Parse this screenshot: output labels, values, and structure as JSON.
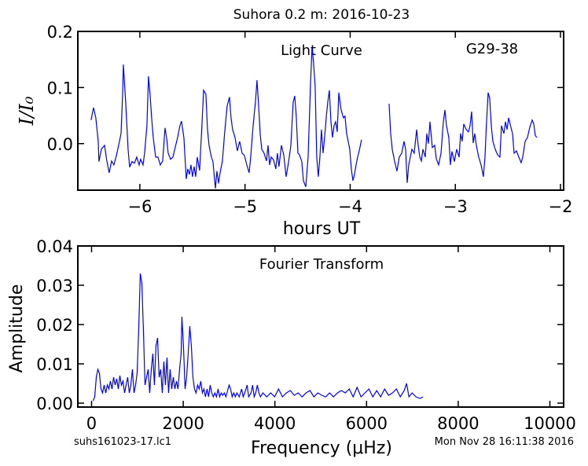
{
  "chart_data": [
    {
      "type": "line",
      "title": "Suhora 0.2 m:  2016-10-23",
      "annotations": [
        "Light Curve",
        "G29-38"
      ],
      "x_label": "hours UT",
      "y_label": "I/I₀",
      "color": "#0000ff",
      "xlim": [
        -6.59,
        -1.97
      ],
      "ylim": [
        -0.083,
        0.2
      ],
      "xticks": [
        {
          "value": -6,
          "label": "−6"
        },
        {
          "value": -5,
          "label": "−5"
        },
        {
          "value": -4,
          "label": "−4"
        },
        {
          "value": -3,
          "label": "−3"
        },
        {
          "value": -2,
          "label": "−2"
        }
      ],
      "yticks": [
        {
          "value": 0,
          "label": "0.0"
        },
        0.1,
        0.2
      ],
      "x": [
        -6.464,
        -6.441,
        -6.419,
        -6.396,
        -6.389,
        -6.366,
        -6.336,
        -6.314,
        -6.292,
        -6.269,
        -6.247,
        -6.224,
        -6.202,
        -6.179,
        -6.164,
        -6.157,
        -6.135,
        -6.112,
        -6.097,
        -6.075,
        -6.052,
        -6.03,
        -6.007,
        -5.993,
        -5.97,
        -5.955,
        -5.933,
        -5.918,
        -5.903,
        -5.888,
        -5.873,
        -5.85,
        -5.828,
        -5.806,
        -5.783,
        -5.761,
        -5.746,
        -5.731,
        -5.708,
        -5.686,
        -5.664,
        -5.641,
        -5.619,
        -5.604,
        -5.581,
        -5.559,
        -5.544,
        -5.529,
        -5.514,
        -5.499,
        -5.484,
        -5.469,
        -5.454,
        -5.432,
        -5.409,
        -5.394,
        -5.372,
        -5.357,
        -5.342,
        -5.32,
        -5.305,
        -5.282,
        -5.267,
        -5.252,
        -5.237,
        -5.215,
        -5.193,
        -5.17,
        -5.148,
        -5.133,
        -5.118,
        -5.095,
        -5.073,
        -5.051,
        -5.028,
        -5.006,
        -4.983,
        -4.961,
        -4.946,
        -4.923,
        -4.901,
        -4.886,
        -4.871,
        -4.856,
        -4.841,
        -4.819,
        -4.796,
        -4.781,
        -4.766,
        -4.751,
        -4.729,
        -4.707,
        -4.692,
        -4.677,
        -4.654,
        -4.631,
        -4.609,
        -4.587,
        -4.564,
        -4.542,
        -4.527,
        -4.512,
        -4.497,
        -4.482,
        -4.46,
        -4.445,
        -4.422,
        -4.4,
        -4.378,
        -4.363,
        -4.348,
        -4.333,
        -4.318,
        -4.303,
        -4.288,
        -4.273,
        -4.258,
        -4.243,
        -4.228,
        -4.213,
        -4.198,
        -4.183,
        -4.168,
        -4.153,
        -4.138,
        -4.123,
        -4.108,
        -4.086,
        -4.064,
        -4.049,
        -4.034,
        -4.019,
        -4.004,
        -3.989,
        -3.974,
        -3.959,
        -3.944,
        -3.929,
        -3.914,
        -3.892,
        -3.78,
        -3.63,
        -3.615,
        -3.6,
        -3.578,
        -3.555,
        -3.533,
        -3.51,
        -3.488,
        -3.473,
        -3.458,
        -3.443,
        -3.428,
        -3.413,
        -3.391,
        -3.368,
        -3.353,
        -3.338,
        -3.323,
        -3.308,
        -3.286,
        -3.271,
        -3.256,
        -3.241,
        -3.219,
        -3.196,
        -3.181,
        -3.159,
        -3.136,
        -3.114,
        -3.099,
        -3.084,
        -3.062,
        -3.047,
        -3.032,
        -3.009,
        -2.987,
        -2.964,
        -2.95,
        -2.935,
        -2.92,
        -2.897,
        -2.875,
        -2.86,
        -2.845,
        -2.83,
        -2.815,
        -2.8,
        -2.778,
        -2.755,
        -2.733,
        -2.718,
        -2.703,
        -2.688,
        -2.673,
        -2.658,
        -2.643,
        -2.621,
        -2.598,
        -2.576,
        -2.561,
        -2.538,
        -2.523,
        -2.508,
        -2.493,
        -2.471,
        -2.456,
        -2.441,
        -2.419,
        -2.396,
        -2.374,
        -2.359,
        -2.336,
        -2.314,
        -2.292,
        -2.269,
        -2.254,
        -2.239,
        -2.224
      ],
      "values": [
        0.042,
        0.064,
        0.046,
        0.004,
        -0.032,
        -0.01,
        -0.003,
        -0.031,
        -0.052,
        -0.031,
        -0.038,
        -0.022,
        -0.003,
        0.018,
        0.088,
        0.141,
        0.074,
        -0.01,
        -0.042,
        -0.032,
        -0.035,
        -0.024,
        -0.038,
        -0.028,
        -0.038,
        -0.017,
        0.032,
        0.12,
        0.088,
        0.046,
        0.011,
        -0.024,
        -0.024,
        -0.038,
        -0.031,
        0.028,
        0.011,
        -0.017,
        -0.028,
        -0.024,
        -0.007,
        0.011,
        0.032,
        0.04,
        0.01,
        -0.063,
        -0.045,
        -0.055,
        -0.038,
        -0.059,
        -0.041,
        -0.059,
        -0.024,
        -0.048,
        0.036,
        0.095,
        0.088,
        0.025,
        -0.003,
        -0.024,
        -0.032,
        -0.08,
        -0.049,
        -0.071,
        -0.052,
        -0.031,
        0.021,
        0.067,
        0.083,
        0.046,
        0.025,
        0.011,
        -0.013,
        0.004,
        -0.017,
        -0.021,
        -0.038,
        -0.052,
        -0.024,
        0.032,
        0.074,
        0.113,
        0.069,
        0.018,
        -0.01,
        -0.017,
        -0.031,
        -0.003,
        -0.038,
        -0.024,
        -0.029,
        -0.045,
        -0.017,
        -0.041,
        -0.003,
        -0.021,
        -0.059,
        -0.034,
        -0.003,
        0.074,
        0.085,
        0.046,
        -0.017,
        -0.02,
        -0.032,
        -0.066,
        -0.077,
        -0.024,
        0.102,
        0.172,
        0.144,
        0.102,
        -0.024,
        -0.059,
        -0.024,
        0.025,
        -0.017,
        0.011,
        0.046,
        0.074,
        0.095,
        0.039,
        0.011,
        0.032,
        0.039,
        0.021,
        0.091,
        0.06,
        0.046,
        0.049,
        0.018,
        0.004,
        -0.01,
        -0.045,
        -0.066,
        -0.055,
        -0.038,
        -0.024,
        -0.013,
        0.007,
        null,
        0.071,
        0.018,
        -0.01,
        -0.031,
        -0.049,
        -0.024,
        -0.017,
        0.004,
        -0.01,
        -0.07,
        -0.038,
        -0.024,
        -0.01,
        -0.017,
        0.025,
        -0.003,
        -0.024,
        -0.031,
        -0.01,
        -0.024,
        0.018,
        0.0,
        0.039,
        -0.007,
        -0.003,
        -0.027,
        -0.038,
        -0.017,
        0.039,
        0.06,
        0.032,
        0.011,
        -0.038,
        -0.014,
        -0.032,
        -0.01,
        -0.024,
        0.018,
        0.004,
        0.035,
        0.025,
        0.021,
        0.032,
        0.057,
        0.001,
        0.018,
        -0.003,
        -0.024,
        -0.038,
        -0.059,
        -0.024,
        0.039,
        0.091,
        0.081,
        0.032,
        0.004,
        -0.01,
        -0.02,
        -0.024,
        0.032,
        0.018,
        0.039,
        0.025,
        0.046,
        0.029,
        0.018,
        -0.017,
        -0.013,
        -0.024,
        -0.034,
        -0.024,
        0.004,
        0.011,
        0.029,
        0.042,
        0.035,
        0.014,
        0.011
      ]
    },
    {
      "type": "line",
      "annotations": [
        "Fourier Transform"
      ],
      "x_label": "Frequency (μHz)",
      "y_label": "Amplitude",
      "color": "#0000ff",
      "xlim": [
        -300,
        10300
      ],
      "ylim": [
        -0.001,
        0.04
      ],
      "xticks": [
        0,
        2000,
        4000,
        6000,
        8000,
        10000
      ],
      "yticks": [
        {
          "value": 0,
          "label": "0.00"
        },
        0.01,
        0.02,
        0.03,
        0.04
      ],
      "x": [
        34,
        69,
        103,
        137,
        171,
        206,
        240,
        274,
        309,
        343,
        377,
        411,
        446,
        480,
        514,
        549,
        583,
        617,
        651,
        686,
        720,
        754,
        788,
        823,
        857,
        891,
        926,
        960,
        994,
        1028,
        1063,
        1097,
        1131,
        1166,
        1200,
        1234,
        1268,
        1303,
        1337,
        1371,
        1405,
        1440,
        1474,
        1508,
        1543,
        1577,
        1611,
        1645,
        1680,
        1714,
        1748,
        1783,
        1817,
        1851,
        1885,
        1920,
        1954,
        1971,
        2005,
        2040,
        2074,
        2108,
        2143,
        2177,
        2211,
        2245,
        2280,
        2314,
        2348,
        2383,
        2417,
        2451,
        2485,
        2520,
        2554,
        2588,
        2622,
        2657,
        2691,
        2725,
        2760,
        2794,
        2828,
        2862,
        2897,
        2931,
        3000,
        3034,
        3068,
        3102,
        3137,
        3171,
        3222,
        3274,
        3308,
        3342,
        3394,
        3428,
        3479,
        3514,
        3548,
        3582,
        3617,
        3651,
        3685,
        3737,
        3822,
        3908,
        3994,
        4079,
        4165,
        4251,
        4336,
        4422,
        4508,
        4594,
        4679,
        4765,
        4851,
        4936,
        5022,
        5108,
        5193,
        5279,
        5365,
        5451,
        5536,
        5622,
        5708,
        5793,
        5879,
        5965,
        6050,
        6136,
        6222,
        6307,
        6393,
        6479,
        6565,
        6650,
        6736,
        6822,
        6873,
        6925,
        6993,
        7079,
        7165,
        7233
      ],
      "values": [
        0.0006,
        0.0016,
        0.0066,
        0.0086,
        0.0076,
        0.0036,
        0.0026,
        0.0046,
        0.0026,
        0.0046,
        0.0036,
        0.0056,
        0.0036,
        0.0066,
        0.0046,
        0.0062,
        0.0036,
        0.007,
        0.0046,
        0.0056,
        0.0026,
        0.0046,
        0.0066,
        0.0026,
        0.0046,
        0.0086,
        0.0026,
        0.0046,
        0.0076,
        0.0186,
        0.033,
        0.0306,
        0.0186,
        0.0046,
        0.0066,
        0.0086,
        0.0026,
        0.0086,
        0.0126,
        0.0046,
        0.0146,
        0.0166,
        0.0066,
        0.0086,
        0.0026,
        0.0106,
        0.0046,
        0.0116,
        0.0026,
        0.0086,
        0.0036,
        0.0066,
        0.0036,
        0.0056,
        0.0036,
        0.0086,
        0.0126,
        0.022,
        0.0146,
        0.0036,
        0.0066,
        0.0126,
        0.0196,
        0.0146,
        0.0066,
        0.0036,
        0.0026,
        0.0046,
        0.0036,
        0.0056,
        0.0026,
        0.0036,
        0.0016,
        0.0036,
        0.0016,
        0.0046,
        0.0026,
        0.0016,
        0.0026,
        0.0016,
        0.0036,
        0.0016,
        0.0026,
        0.002,
        0.0026,
        0.0016,
        0.0046,
        0.0036,
        0.0016,
        0.0026,
        0.0016,
        0.0026,
        0.0016,
        0.0036,
        0.0016,
        0.0026,
        0.0046,
        0.0016,
        0.0026,
        0.0046,
        0.0016,
        0.0026,
        0.0046,
        0.0026,
        0.0016,
        0.0026,
        0.0016,
        0.0026,
        0.0016,
        0.0036,
        0.0016,
        0.0026,
        0.0032,
        0.002,
        0.0026,
        0.0016,
        0.0026,
        0.0032,
        0.0016,
        0.0026,
        0.002,
        0.0016,
        0.0026,
        0.0016,
        0.0026,
        0.0032,
        0.0026,
        0.0036,
        0.0016,
        0.004,
        0.0016,
        0.0026,
        0.0036,
        0.0016,
        0.0032,
        0.0016,
        0.0036,
        0.002,
        0.0026,
        0.0036,
        0.0016,
        0.0032,
        0.005,
        0.0016,
        0.0026,
        0.0016,
        0.0012,
        0.0016
      ]
    }
  ],
  "footnotes": [
    "suhs161023-17.lc1",
    "Mon Nov 28 16:11:38 2016"
  ]
}
